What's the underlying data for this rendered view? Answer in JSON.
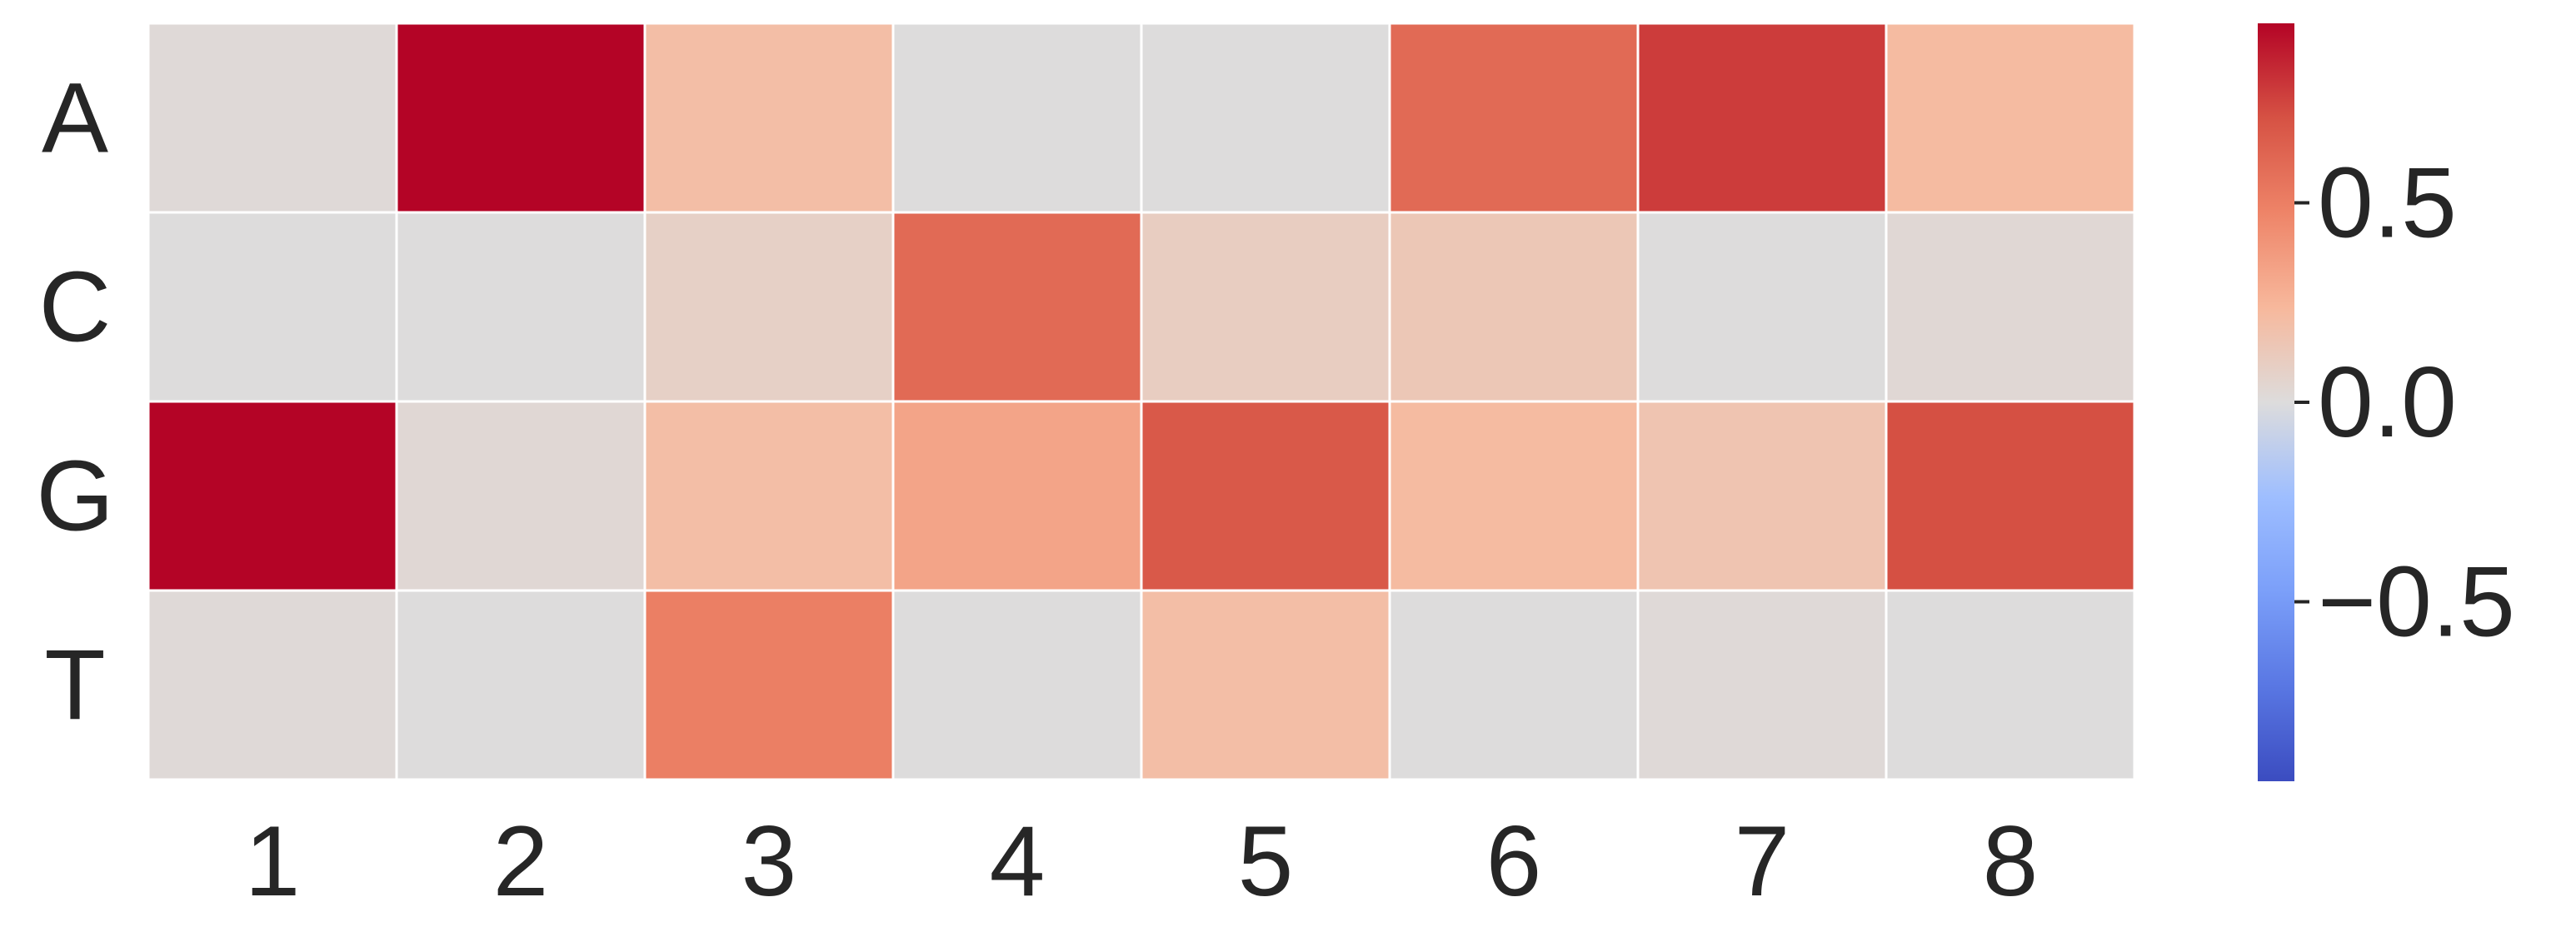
{
  "chart_data": {
    "type": "heatmap",
    "title": "",
    "xlabel": "",
    "ylabel": "",
    "x_categories": [
      "1",
      "2",
      "3",
      "4",
      "5",
      "6",
      "7",
      "8"
    ],
    "y_categories": [
      "A",
      "C",
      "G",
      "T"
    ],
    "values": [
      [
        0.02,
        0.95,
        0.2,
        0.0,
        0.0,
        0.6,
        0.78,
        0.22
      ],
      [
        0.0,
        0.0,
        0.08,
        0.6,
        0.1,
        0.14,
        0.0,
        0.03
      ],
      [
        0.95,
        0.03,
        0.2,
        0.33,
        0.68,
        0.22,
        0.16,
        0.72
      ],
      [
        0.02,
        0.0,
        0.5,
        0.0,
        0.2,
        0.0,
        0.02,
        0.0
      ]
    ],
    "colormap": "coolwarm",
    "vmin": -0.95,
    "vmax": 0.95,
    "colorbar": {
      "ticks": [
        0.5,
        0.0,
        -0.5
      ],
      "tick_labels": [
        "0.5",
        "0.0",
        "−0.5"
      ]
    },
    "grid": false,
    "legend": "colorbar-right"
  }
}
